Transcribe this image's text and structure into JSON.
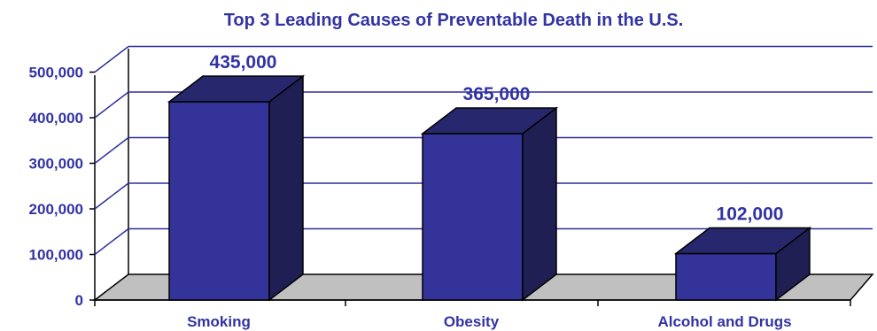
{
  "chart_data": {
    "type": "bar",
    "title": "Top 3 Leading Causes of Preventable Death in the U.S.",
    "categories": [
      "Smoking",
      "Obesity",
      "Alcohol and Drugs"
    ],
    "values": [
      435000,
      365000,
      102000
    ],
    "data_labels": [
      "435,000",
      "365,000",
      "102,000"
    ],
    "y_ticks": [
      "0",
      "100,000",
      "200,000",
      "300,000",
      "400,000",
      "500,000"
    ],
    "ylim": [
      0,
      500000
    ],
    "xlabel": "",
    "ylabel": "",
    "grid": true,
    "style": "3d",
    "colors": {
      "bar_front": "#333399",
      "bar_side": "#1f1f54",
      "bar_top": "#27276e",
      "floor": "#c0c0c0",
      "grid": "#2e2e9e",
      "text": "#3333a3"
    }
  }
}
